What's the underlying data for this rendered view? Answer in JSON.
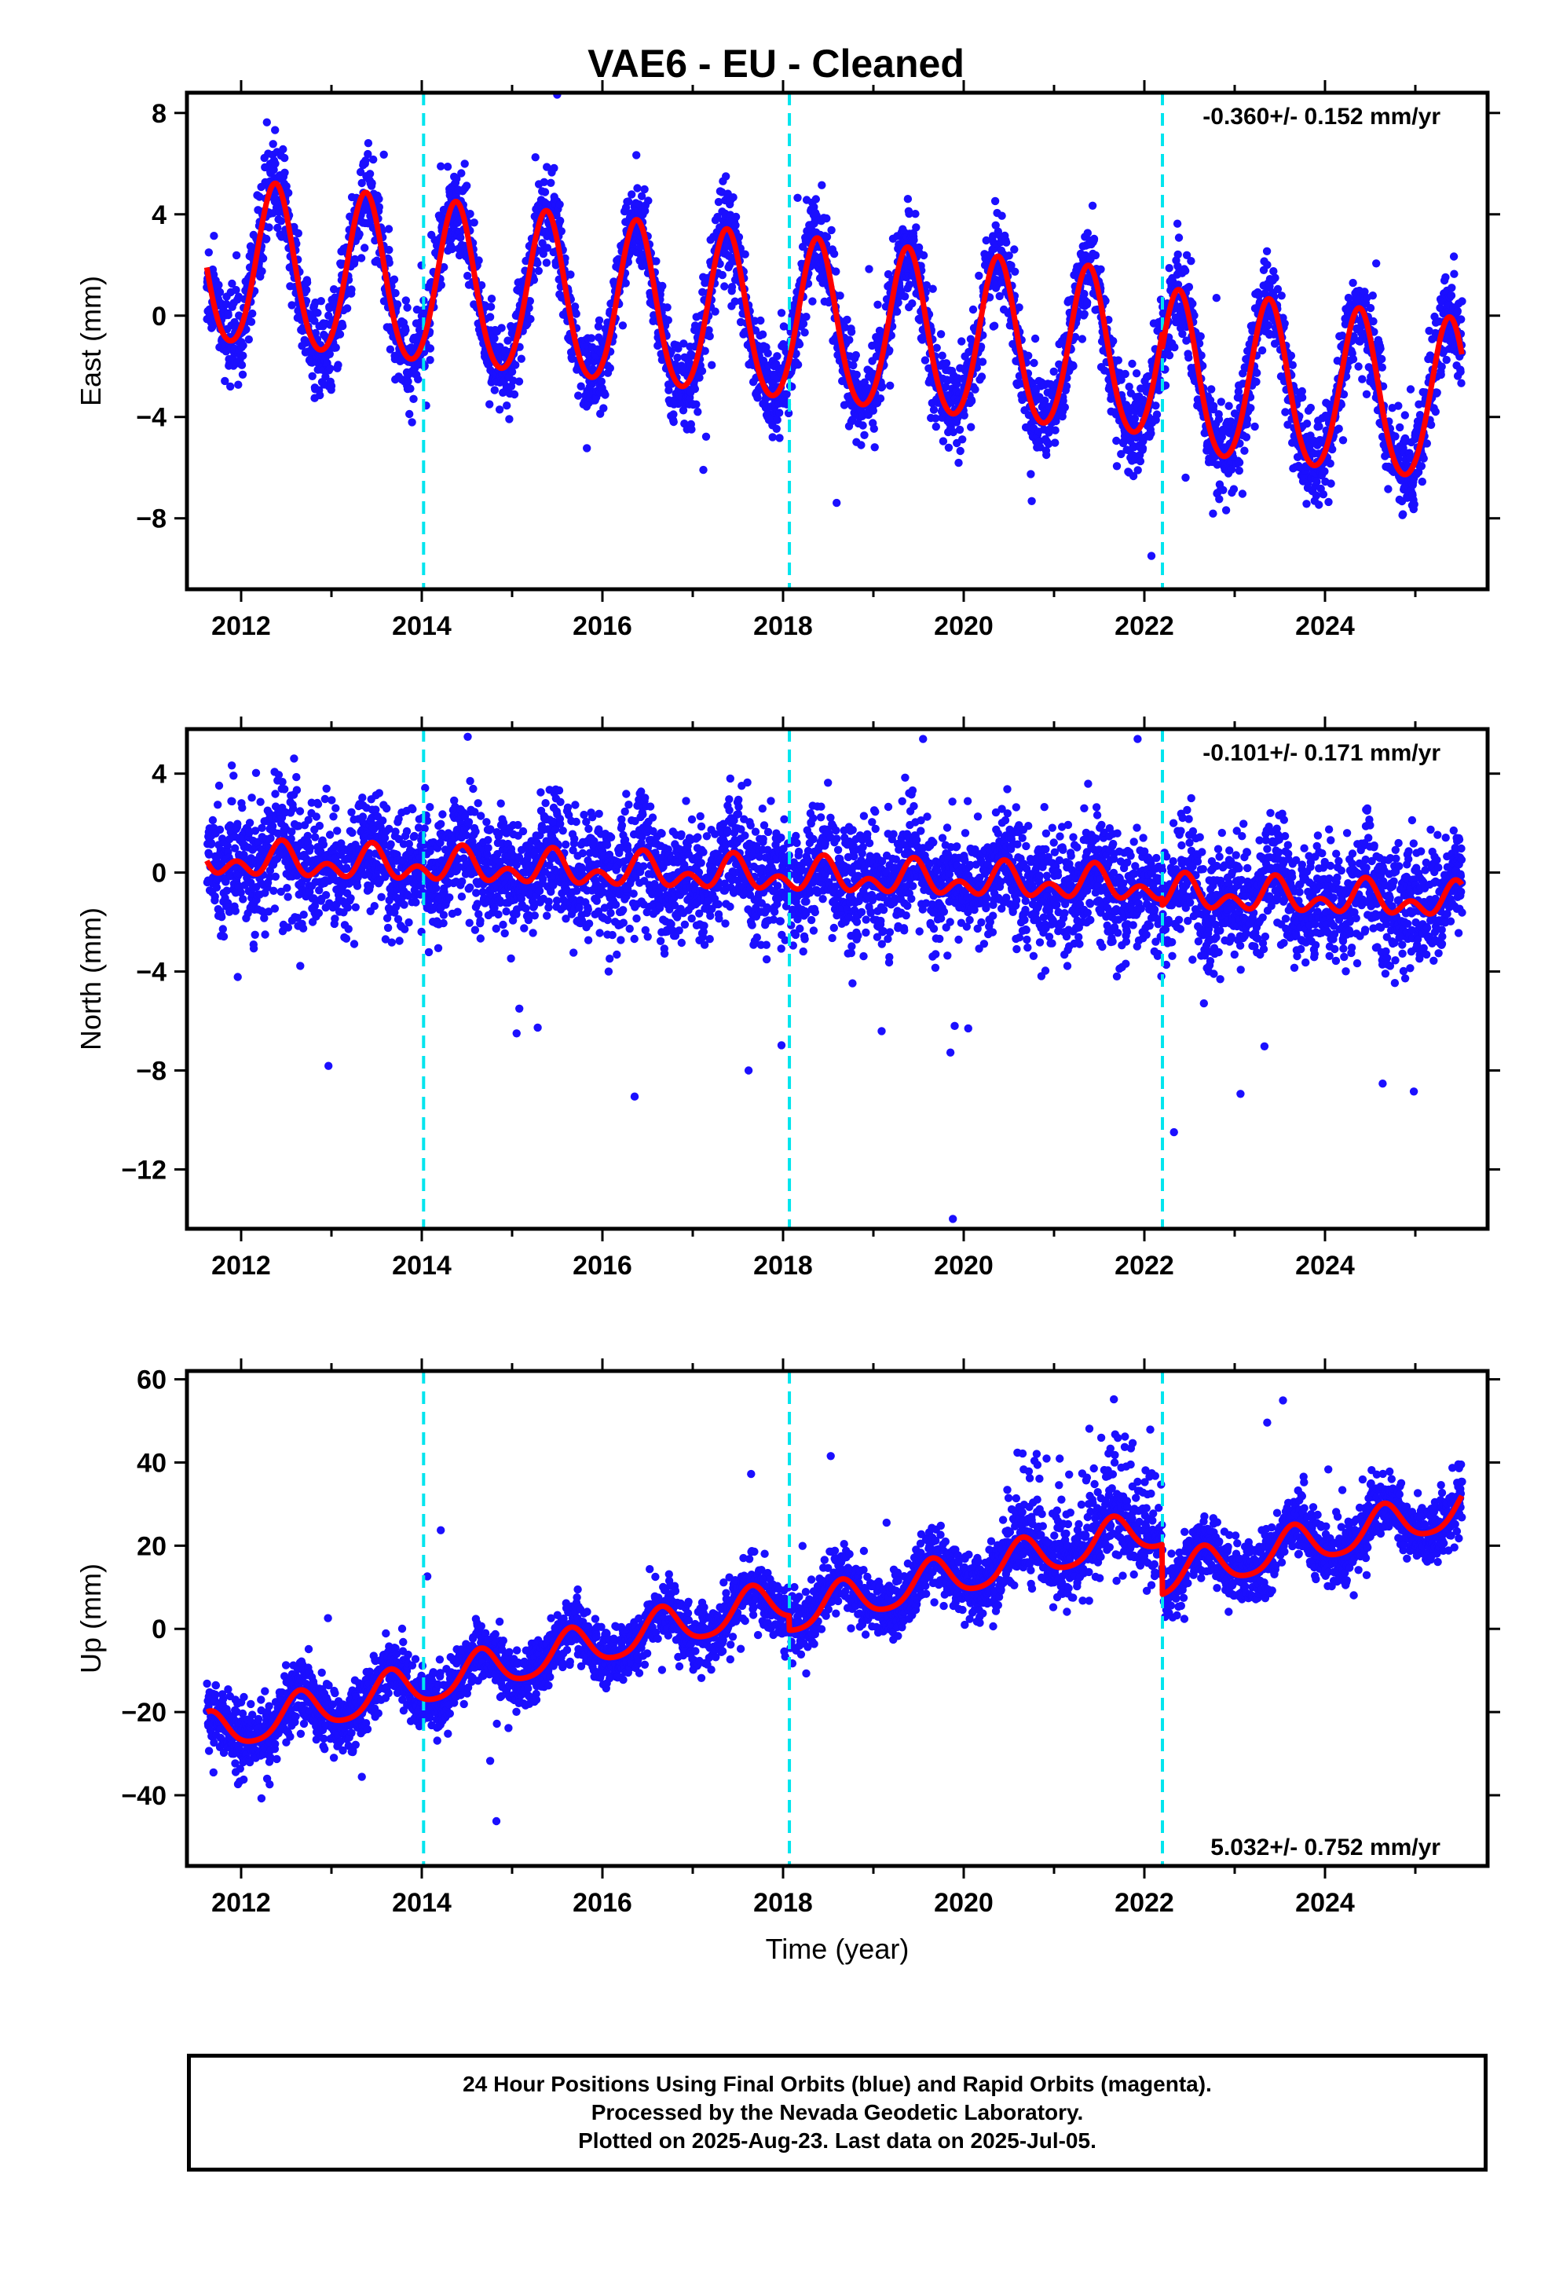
{
  "chart_data": [
    {
      "type": "scatter",
      "title": "VAE6  - EU - Cleaned",
      "ylabel": "East (mm)",
      "xlabel": "",
      "xlim": [
        2011.4,
        2025.8
      ],
      "ylim": [
        -10.8,
        8.8
      ],
      "xticks": [
        2012,
        2014,
        2016,
        2018,
        2020,
        2022,
        2024
      ],
      "yticks": [
        -8,
        -4,
        0,
        4,
        8
      ],
      "rate_text": "-0.360+/- 0.152 mm/yr",
      "offsets": [
        2014.02,
        2018.07,
        2022.2
      ],
      "grid": false,
      "colors": {
        "points": "#1b0fff",
        "model": "#ff0000",
        "offset_lines": "#00e5ee"
      },
      "model": {
        "start": 2011.62,
        "end": 2025.52,
        "ref": 2011.62,
        "intercept": 2.0,
        "rate": -0.36,
        "annual_amp": 3.2,
        "annual_peak": 2012.38,
        "semi_amp": 0.3,
        "semi_peak": 2012.38,
        "steps": [
          {
            "at": 2022.2,
            "size": -0.6
          }
        ],
        "noise": 0.9,
        "outlier_rate": 0.012,
        "outlier_scale": 1.6
      },
      "seed": 11
    },
    {
      "type": "scatter",
      "ylabel": "North (mm)",
      "xlabel": "",
      "xlim": [
        2011.4,
        2025.8
      ],
      "ylim": [
        -14.4,
        5.8
      ],
      "xticks": [
        2012,
        2014,
        2016,
        2018,
        2020,
        2022,
        2024
      ],
      "yticks": [
        -12,
        -8,
        -4,
        0,
        4
      ],
      "rate_text": "-0.101+/- 0.171 mm/yr",
      "offsets": [
        2014.02,
        2018.07,
        2022.2
      ],
      "grid": false,
      "colors": {
        "points": "#1b0fff",
        "model": "#ff0000",
        "offset_lines": "#00e5ee"
      },
      "model": {
        "start": 2011.62,
        "end": 2025.52,
        "ref": 2011.62,
        "intercept": 0.5,
        "rate": -0.101,
        "annual_amp": 0.45,
        "annual_peak": 2012.45,
        "semi_amp": 0.45,
        "semi_peak": 2012.45,
        "steps": [
          {
            "at": 2022.2,
            "size": -0.3
          }
        ],
        "noise": 1.2,
        "outlier_rate": 0.01,
        "outlier_scale": 2.4
      },
      "extra_points": [
        {
          "x": 2019.88,
          "y": -14.0
        },
        {
          "x": 2015.05,
          "y": -6.5
        },
        {
          "x": 2015.08,
          "y": -5.5
        },
        {
          "x": 2019.9,
          "y": -6.2
        },
        {
          "x": 2020.05,
          "y": -6.3
        },
        {
          "x": 2019.55,
          "y": 5.4
        }
      ],
      "seed": 23
    },
    {
      "type": "scatter",
      "ylabel": "Up (mm)",
      "xlabel": "Time (year)",
      "xlim": [
        2011.4,
        2025.8
      ],
      "ylim": [
        -57,
        62
      ],
      "xticks": [
        2012,
        2014,
        2016,
        2018,
        2020,
        2022,
        2024
      ],
      "yticks": [
        -40,
        -20,
        0,
        20,
        40,
        60
      ],
      "rate_text": "5.032+/- 0.752 mm/yr",
      "offsets": [
        2014.02,
        2018.07,
        2022.2
      ],
      "grid": false,
      "colors": {
        "points": "#1b0fff",
        "model": "#ff0000",
        "offset_lines": "#00e5ee"
      },
      "model": {
        "start": 2011.62,
        "end": 2025.52,
        "ref": 2011.62,
        "intercept": -25.5,
        "rate": 5.032,
        "annual_amp": 4.8,
        "annual_peak": 2012.65,
        "semi_amp": 0.8,
        "semi_peak": 2012.65,
        "steps": [
          {
            "at": 2018.07,
            "size": -3.5
          },
          {
            "at": 2022.2,
            "size": -12.0
          }
        ],
        "noise": 3.8,
        "outlier_rate": 0.015,
        "outlier_scale": 2.0,
        "burst": {
          "start": 2020.4,
          "end": 2022.2,
          "scale": 10.0,
          "bias": 8.0
        }
      },
      "seed": 37
    }
  ],
  "footer": {
    "line1": "24 Hour Positions Using Final Orbits (blue) and Rapid Orbits (magenta).",
    "line2": "Processed by the Nevada Geodetic Laboratory.",
    "line3": "Plotted on 2025-Aug-23. Last data on 2025-Jul-05."
  }
}
